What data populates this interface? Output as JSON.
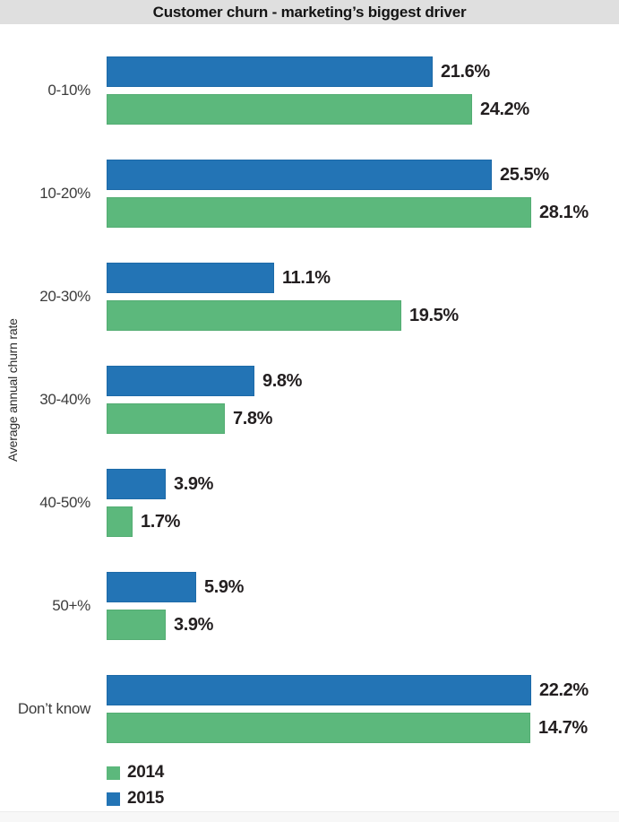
{
  "title": "Customer churn - marketing’s biggest driver",
  "y_axis_label": "Average annual churn rate",
  "colors": {
    "2014": "#5cb87c",
    "2015": "#2374b5",
    "title_band": "#dfdfdf"
  },
  "legend": [
    {
      "label": "2014"
    },
    {
      "label": "2015"
    }
  ],
  "chart_data": {
    "type": "bar",
    "orientation": "horizontal",
    "title": "Customer churn - marketing’s biggest driver",
    "ylabel": "Average annual churn rate",
    "value_suffix": "%",
    "legend_position": "bottom-left",
    "grid": false,
    "categories": [
      "0-10%",
      "10-20%",
      "20-30%",
      "30-40%",
      "40-50%",
      "50+%",
      "Don’t know"
    ],
    "series": [
      {
        "name": "2015",
        "values": [
          21.6,
          25.5,
          11.1,
          9.8,
          3.9,
          5.9,
          22.2
        ]
      },
      {
        "name": "2014",
        "values": [
          24.2,
          28.1,
          19.5,
          7.8,
          1.7,
          3.9,
          14.7
        ]
      }
    ],
    "note": "In the source image the Don’t know bars are drawn at full width, not proportional to their 22.2% / 14.7% values",
    "rows": [
      {
        "category": "0-10%",
        "v2015": "21.6%",
        "w2015": 364,
        "v2014": "24.2%",
        "w2014": 408
      },
      {
        "category": "10-20%",
        "v2015": "25.5%",
        "w2015": 430,
        "v2014": "28.1%",
        "w2014": 474
      },
      {
        "category": "20-30%",
        "v2015": "11.1%",
        "w2015": 187,
        "v2014": "19.5%",
        "w2014": 329
      },
      {
        "category": "30-40%",
        "v2015": "9.8%",
        "w2015": 165,
        "v2014": "7.8%",
        "w2014": 132
      },
      {
        "category": "40-50%",
        "v2015": "3.9%",
        "w2015": 66,
        "v2014": "1.7%",
        "w2014": 29
      },
      {
        "category": "50+%",
        "v2015": "5.9%",
        "w2015": 100,
        "v2014": "3.9%",
        "w2014": 66
      },
      {
        "category": "Don’t know",
        "v2015": "22.2%",
        "w2015": 474,
        "v2014": "14.7%",
        "w2014": 473
      }
    ]
  }
}
